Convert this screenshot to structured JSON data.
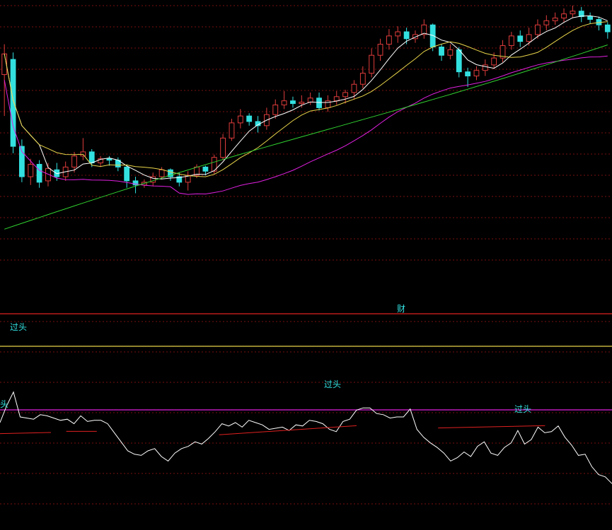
{
  "chart_data": [
    {
      "type": "candlestick",
      "panel": "price",
      "colors": {
        "up": "#e03c3c",
        "down": "#33e0e0",
        "grid": "#7a1010",
        "ma5": "#ffffff",
        "ma10": "#e8d44a",
        "ma20": "#e020e0",
        "ma60": "#30d030"
      },
      "gridlines": 13,
      "candles": [
        [
          16,
          17.5,
          13.0,
          18.2
        ],
        [
          17.1,
          10.8,
          10.3,
          17.6
        ],
        [
          10.8,
          8.6,
          8.2,
          11.3
        ],
        [
          8.6,
          9.5,
          8.0,
          9.9
        ],
        [
          9.5,
          8.2,
          7.8,
          9.8
        ],
        [
          8.3,
          9.2,
          7.9,
          9.6
        ],
        [
          9.1,
          8.6,
          8.3,
          9.6
        ],
        [
          8.6,
          9.3,
          8.3,
          9.7
        ],
        [
          9.3,
          10.1,
          8.9,
          10.4
        ],
        [
          10.1,
          10.4,
          9.8,
          11.4
        ],
        [
          10.4,
          9.6,
          9.3,
          10.6
        ],
        [
          9.6,
          9.9,
          9.3,
          10.1
        ],
        [
          9.9,
          9.8,
          9.4,
          10.1
        ],
        [
          9.8,
          9.3,
          9.0,
          10.0
        ],
        [
          9.3,
          8.3,
          7.8,
          9.5
        ],
        [
          8.3,
          8.0,
          7.4,
          8.6
        ],
        [
          8.0,
          8.2,
          7.8,
          8.4
        ],
        [
          8.2,
          8.6,
          7.9,
          8.9
        ],
        [
          8.6,
          9.1,
          8.4,
          9.3
        ],
        [
          9.1,
          8.6,
          8.3,
          9.2
        ],
        [
          8.6,
          8.2,
          7.9,
          8.9
        ],
        [
          8.2,
          8.7,
          7.6,
          9.0
        ],
        [
          8.7,
          9.3,
          8.5,
          9.5
        ],
        [
          9.3,
          9.0,
          8.7,
          9.4
        ],
        [
          9.0,
          10.0,
          8.8,
          10.2
        ],
        [
          10.0,
          11.4,
          9.8,
          11.7
        ],
        [
          11.4,
          12.5,
          11.2,
          12.8
        ],
        [
          12.5,
          13.0,
          12.1,
          13.5
        ],
        [
          13.0,
          12.6,
          12.3,
          13.2
        ],
        [
          12.6,
          12.3,
          11.8,
          13.0
        ],
        [
          12.3,
          13.1,
          12.0,
          13.6
        ],
        [
          13.1,
          13.8,
          12.8,
          14.2
        ],
        [
          13.8,
          14.1,
          13.5,
          14.8
        ],
        [
          14.1,
          13.9,
          13.6,
          14.4
        ],
        [
          13.9,
          14.0,
          13.6,
          14.5
        ],
        [
          14.0,
          14.3,
          13.8,
          14.7
        ],
        [
          14.3,
          13.6,
          13.4,
          14.7
        ],
        [
          13.6,
          14.1,
          13.3,
          14.5
        ],
        [
          14.1,
          14.4,
          13.8,
          14.8
        ],
        [
          14.4,
          14.7,
          13.9,
          14.9
        ],
        [
          14.7,
          15.3,
          14.2,
          15.6
        ],
        [
          15.3,
          16.1,
          15.0,
          16.6
        ],
        [
          16.1,
          17.4,
          15.8,
          17.9
        ],
        [
          17.4,
          18.2,
          17.0,
          18.6
        ],
        [
          18.2,
          18.8,
          17.8,
          19.3
        ],
        [
          18.8,
          19.1,
          18.3,
          19.5
        ],
        [
          19.1,
          18.6,
          18.2,
          19.4
        ],
        [
          18.6,
          18.9,
          18.3,
          19.2
        ],
        [
          18.9,
          19.6,
          18.6,
          20.0
        ],
        [
          19.6,
          18.0,
          17.7,
          19.7
        ],
        [
          18.0,
          17.4,
          17.0,
          18.2
        ],
        [
          17.4,
          17.8,
          17.1,
          18.2
        ],
        [
          17.8,
          16.2,
          15.8,
          18.0
        ],
        [
          16.2,
          15.9,
          15.1,
          16.5
        ],
        [
          15.9,
          16.3,
          15.6,
          16.6
        ],
        [
          16.3,
          16.7,
          15.9,
          17.1
        ],
        [
          16.7,
          17.2,
          16.4,
          17.6
        ],
        [
          17.2,
          18.1,
          16.9,
          18.5
        ],
        [
          18.1,
          18.8,
          17.8,
          19.1
        ],
        [
          18.8,
          18.4,
          18.0,
          19.2
        ],
        [
          18.4,
          18.9,
          18.1,
          19.4
        ],
        [
          18.9,
          19.6,
          18.6,
          20.0
        ],
        [
          19.6,
          19.9,
          19.2,
          20.3
        ],
        [
          19.9,
          20.1,
          19.6,
          20.5
        ],
        [
          20.1,
          20.4,
          19.8,
          20.8
        ],
        [
          20.4,
          20.6,
          20.1,
          21.0
        ],
        [
          20.6,
          20.2,
          19.8,
          20.9
        ],
        [
          20.2,
          20.0,
          19.7,
          20.5
        ],
        [
          20.0,
          19.6,
          19.2,
          20.2
        ],
        [
          19.6,
          19.1,
          18.6,
          19.8
        ]
      ]
    },
    {
      "type": "line",
      "panel": "indicator",
      "annotations": [
        "财",
        "过头",
        "过头",
        "过头",
        "头"
      ],
      "reference_lines": [
        {
          "label": "red",
          "color": "#e02020",
          "value": 100
        },
        {
          "label": "yellow",
          "color": "#e8d44a",
          "value": 80
        },
        {
          "label": "magenta",
          "color": "#e020e0",
          "value": 40
        }
      ],
      "series": [
        {
          "color": "#ffffff",
          "values": [
            20,
            35,
            47,
            25,
            24,
            23,
            27,
            26,
            24,
            22,
            23,
            19,
            26,
            21,
            22,
            22,
            19,
            11,
            3,
            -5,
            -8,
            -9,
            -5,
            -3,
            -10,
            -14,
            -7,
            -3,
            -1,
            3,
            1,
            6,
            12,
            19,
            17,
            20,
            16,
            22,
            20,
            18,
            14,
            15,
            16,
            13,
            18,
            17,
            22,
            21,
            19,
            14,
            12,
            21,
            23,
            31,
            33,
            33,
            28,
            27,
            24,
            25,
            25,
            32,
            14,
            7,
            2,
            -2,
            -7,
            -14,
            -11,
            -6,
            -10,
            -1,
            3,
            -7,
            -9,
            -2,
            2,
            13,
            1,
            5,
            16,
            11,
            12,
            17,
            7,
            0,
            -9,
            -8,
            -19,
            -26,
            -28,
            -34
          ]
        }
      ],
      "segments": [
        {
          "color": "#e02020",
          "from": [
            0,
            14
          ],
          "to": [
            10,
            15
          ]
        },
        {
          "color": "#e02020",
          "from": [
            13,
            16
          ],
          "to": [
            19,
            16
          ]
        },
        {
          "color": "#e02020",
          "from": [
            43,
            13
          ],
          "to": [
            70,
            21
          ]
        },
        {
          "color": "#e02020",
          "from": [
            86,
            19
          ],
          "to": [
            107,
            21
          ]
        }
      ]
    }
  ]
}
